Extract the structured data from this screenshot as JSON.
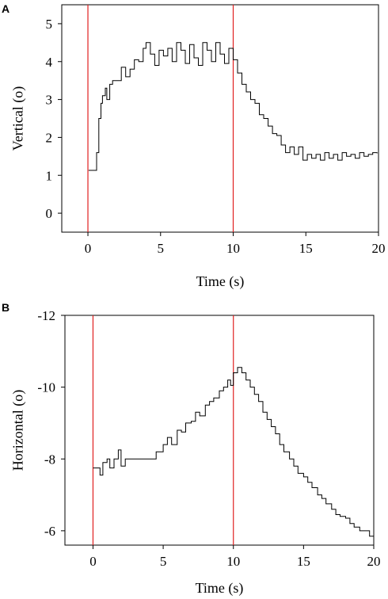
{
  "chart_data": [
    {
      "type": "line",
      "panel_label": "A",
      "xlabel": "Time (s)",
      "ylabel": "Vertical (o)",
      "xlim": [
        -1.8,
        20
      ],
      "ylim": [
        -0.5,
        5.5
      ],
      "x_ticks": [
        0,
        5,
        10,
        15,
        20
      ],
      "y_ticks": [
        0,
        1,
        2,
        3,
        4,
        5
      ],
      "y_inverted": false,
      "markers": [
        0,
        10
      ],
      "marker_color": "#e02020",
      "line_color": "#000000",
      "series": [
        {
          "x": [
            0.05,
            0.5,
            0.6,
            0.75,
            0.9,
            1.0,
            1.1,
            1.2,
            1.3,
            1.5,
            1.7,
            2.0,
            2.3,
            2.6,
            2.9,
            3.2,
            3.5,
            3.8,
            4.0,
            4.3,
            4.6,
            4.9,
            5.2,
            5.5,
            5.8,
            6.1,
            6.4,
            6.7,
            7.0,
            7.3,
            7.6,
            7.9,
            8.2,
            8.5,
            8.8,
            9.1,
            9.4,
            9.7,
            10.0,
            10.3,
            10.6,
            10.9,
            11.2,
            11.5,
            11.8,
            12.1,
            12.4,
            12.7,
            13.0,
            13.3,
            13.6,
            13.9,
            14.2,
            14.5,
            14.8,
            15.1,
            15.4,
            15.7,
            16.0,
            16.3,
            16.6,
            16.9,
            17.2,
            17.5,
            17.8,
            18.1,
            18.4,
            18.7,
            19.0,
            19.3,
            19.6,
            19.9
          ],
          "y": [
            1.13,
            1.13,
            1.6,
            2.5,
            2.9,
            3.1,
            3.1,
            3.3,
            3.0,
            3.4,
            3.5,
            3.5,
            3.85,
            3.6,
            3.8,
            4.05,
            4.0,
            4.35,
            4.5,
            4.2,
            3.9,
            4.3,
            4.15,
            4.35,
            4.0,
            4.5,
            4.3,
            3.95,
            4.45,
            4.1,
            3.9,
            4.5,
            4.3,
            4.0,
            4.5,
            4.2,
            3.95,
            4.35,
            4.05,
            3.7,
            3.4,
            3.2,
            3.0,
            2.9,
            2.6,
            2.5,
            2.3,
            2.1,
            2.05,
            1.8,
            1.6,
            1.75,
            1.55,
            1.75,
            1.4,
            1.55,
            1.45,
            1.55,
            1.4,
            1.6,
            1.45,
            1.55,
            1.4,
            1.6,
            1.5,
            1.55,
            1.45,
            1.6,
            1.5,
            1.55,
            1.6,
            1.58
          ]
        }
      ]
    },
    {
      "type": "line",
      "panel_label": "B",
      "xlabel": "Time (s)",
      "ylabel": "Horizontal (o)",
      "xlim": [
        -2,
        20
      ],
      "ylim": [
        -5.6,
        -12
      ],
      "x_ticks": [
        0,
        5,
        10,
        15,
        20
      ],
      "y_ticks": [
        -12,
        -10,
        -8,
        -6
      ],
      "y_inverted": true,
      "markers": [
        0,
        10
      ],
      "marker_color": "#e02020",
      "line_color": "#000000",
      "series": [
        {
          "x": [
            0.0,
            0.3,
            0.5,
            0.7,
            1.0,
            1.2,
            1.5,
            1.8,
            2.0,
            2.3,
            2.6,
            3.0,
            3.5,
            4.0,
            4.5,
            5.0,
            5.3,
            5.6,
            6.0,
            6.3,
            6.6,
            7.0,
            7.3,
            7.6,
            8.0,
            8.3,
            8.6,
            9.0,
            9.3,
            9.6,
            9.8,
            10.0,
            10.3,
            10.6,
            10.9,
            11.2,
            11.5,
            11.8,
            12.1,
            12.4,
            12.7,
            13.0,
            13.3,
            13.6,
            14.0,
            14.3,
            14.6,
            15.0,
            15.3,
            15.6,
            16.0,
            16.3,
            16.6,
            17.0,
            17.3,
            17.6,
            18.0,
            18.3,
            18.6,
            19.0,
            19.4,
            19.7,
            20.0
          ],
          "y": [
            -7.75,
            -7.75,
            -7.55,
            -7.9,
            -8.0,
            -7.75,
            -8.0,
            -8.25,
            -7.8,
            -8.0,
            -8.0,
            -8.0,
            -8.0,
            -8.0,
            -8.2,
            -8.4,
            -8.6,
            -8.4,
            -8.8,
            -8.75,
            -9.0,
            -9.05,
            -9.3,
            -9.2,
            -9.5,
            -9.6,
            -9.7,
            -9.9,
            -10.0,
            -10.2,
            -10.05,
            -10.4,
            -10.55,
            -10.4,
            -10.2,
            -10.0,
            -9.8,
            -9.6,
            -9.3,
            -9.1,
            -8.9,
            -8.7,
            -8.4,
            -8.2,
            -8.0,
            -7.8,
            -7.6,
            -7.5,
            -7.35,
            -7.2,
            -7.0,
            -6.9,
            -6.75,
            -6.6,
            -6.45,
            -6.4,
            -6.35,
            -6.2,
            -6.1,
            -6.0,
            -6.0,
            -5.85,
            -5.85
          ]
        }
      ]
    }
  ]
}
